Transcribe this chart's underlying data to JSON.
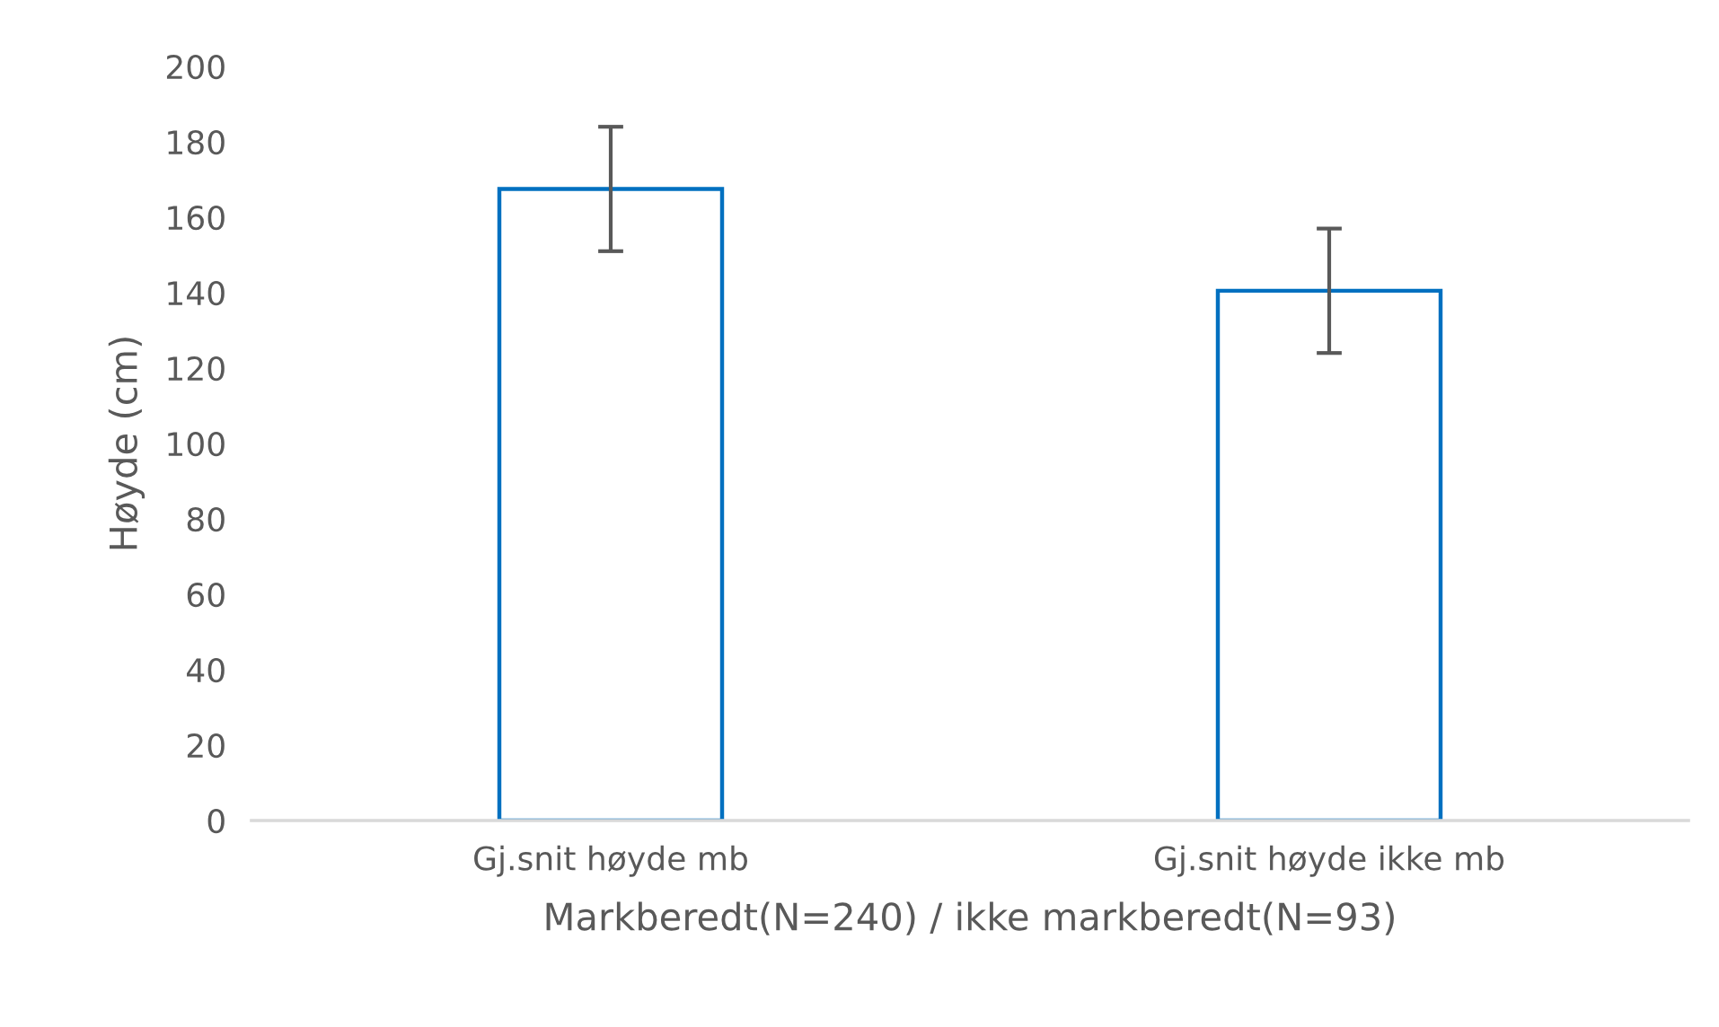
{
  "chart_data": {
    "type": "bar",
    "xlabel": "Markberedt(N=240) / ikke markberedt(N=93)",
    "ylabel": "Høyde (cm)",
    "categories": [
      "Gj.snit høyde mb",
      "Gj.snit høyde ikke mb"
    ],
    "values": [
      167.5,
      140.5
    ],
    "errors": [
      16.5,
      16.5
    ],
    "color": "#0070c0",
    "ylim": [
      0,
      200
    ],
    "yticks": [
      0,
      20,
      40,
      60,
      80,
      100,
      120,
      140,
      160,
      180,
      200
    ],
    "grid": false
  }
}
